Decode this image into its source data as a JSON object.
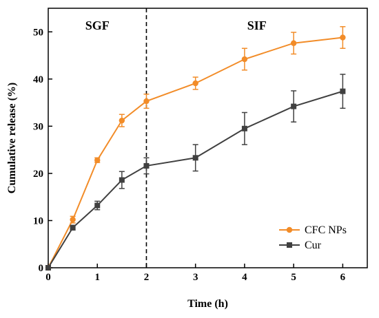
{
  "chart_data": {
    "type": "line",
    "title": "",
    "xlabel": "Time (h)",
    "ylabel": "Cumulative release (%)",
    "x": [
      0,
      0.5,
      1,
      1.5,
      2,
      3,
      4,
      5,
      6
    ],
    "xlim": [
      0,
      6.5
    ],
    "ylim": [
      0,
      55
    ],
    "xticks": [
      0,
      1,
      2,
      3,
      4,
      5,
      6
    ],
    "yticks": [
      0,
      10,
      20,
      30,
      40,
      50
    ],
    "grid": false,
    "legend_position": "bottom-right",
    "divider": {
      "x": 2,
      "style": "dashed"
    },
    "regions": [
      {
        "label": "SGF",
        "x": 1
      },
      {
        "label": "SIF",
        "x": 4.25
      }
    ],
    "series": [
      {
        "name": "CFC NPs",
        "marker": "circle",
        "color": "#f28c28",
        "values": [
          0,
          10.2,
          22.8,
          31.2,
          35.3,
          39.1,
          44.2,
          47.6,
          48.8
        ],
        "errors": [
          0,
          0.7,
          0.5,
          1.3,
          1.5,
          1.3,
          2.3,
          2.3,
          2.3
        ]
      },
      {
        "name": "Cur",
        "marker": "square",
        "color": "#404040",
        "values": [
          0,
          8.5,
          13.2,
          18.6,
          21.6,
          23.3,
          29.5,
          34.2,
          37.4
        ],
        "errors": [
          0,
          0.5,
          0.9,
          1.8,
          1.7,
          2.8,
          3.4,
          3.3,
          3.6
        ]
      }
    ]
  }
}
